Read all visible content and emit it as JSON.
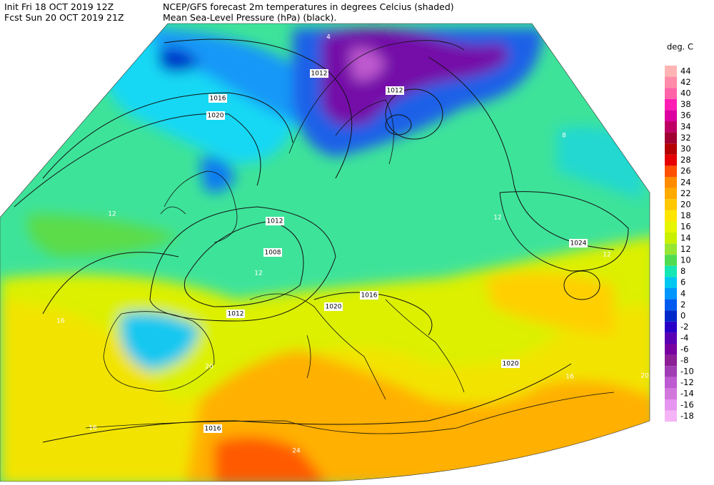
{
  "header": {
    "init": "Init  Fri 18 OCT 2019 12Z",
    "forecast": "Fcst Sun 20 OCT 2019 21Z",
    "title": "NCEP/GFS forecast 2m temperatures in degrees Celcius (shaded)",
    "subtitle": "Mean Sea-Level Pressure (hPa) (black)."
  },
  "legend": {
    "title": "deg. C",
    "entries": [
      {
        "label": 44,
        "color": "#ffb4b4"
      },
      {
        "label": 42,
        "color": "#ff8ca8"
      },
      {
        "label": 40,
        "color": "#ff64a8"
      },
      {
        "label": 38,
        "color": "#ff1eb4"
      },
      {
        "label": 36,
        "color": "#dc00a0"
      },
      {
        "label": 34,
        "color": "#be0064"
      },
      {
        "label": 32,
        "color": "#a00032"
      },
      {
        "label": 30,
        "color": "#b40000"
      },
      {
        "label": 28,
        "color": "#e60000"
      },
      {
        "label": 26,
        "color": "#ff5000"
      },
      {
        "label": 24,
        "color": "#ff8c00"
      },
      {
        "label": 22,
        "color": "#ffaa00"
      },
      {
        "label": 20,
        "color": "#ffc800"
      },
      {
        "label": 18,
        "color": "#ffe600"
      },
      {
        "label": 16,
        "color": "#e6f500"
      },
      {
        "label": 14,
        "color": "#c8f000"
      },
      {
        "label": 12,
        "color": "#96e632"
      },
      {
        "label": 10,
        "color": "#50dc50"
      },
      {
        "label": 8,
        "color": "#14e6b4"
      },
      {
        "label": 6,
        "color": "#00c8f0"
      },
      {
        "label": 4,
        "color": "#0096ff"
      },
      {
        "label": 2,
        "color": "#005af0"
      },
      {
        "label": 0,
        "color": "#0028c8"
      },
      {
        "label": -2,
        "color": "#2800c8"
      },
      {
        "label": -4,
        "color": "#5a00b4"
      },
      {
        "label": -6,
        "color": "#7800a0"
      },
      {
        "label": -8,
        "color": "#8c1e96"
      },
      {
        "label": -10,
        "color": "#a03cb4"
      },
      {
        "label": -12,
        "color": "#be5ad2"
      },
      {
        "label": -14,
        "color": "#d278dc"
      },
      {
        "label": -16,
        "color": "#e696f0"
      },
      {
        "label": -18,
        "color": "#f5b4f5"
      }
    ]
  },
  "map": {
    "isobar_labels": [
      1012,
      1016,
      1020,
      1012,
      1012,
      1008,
      1012,
      1016,
      1020,
      1024,
      1020,
      1016
    ],
    "temperature_labels": [
      12,
      16,
      12,
      16,
      20,
      24,
      12,
      8,
      4,
      16,
      20,
      12
    ]
  }
}
